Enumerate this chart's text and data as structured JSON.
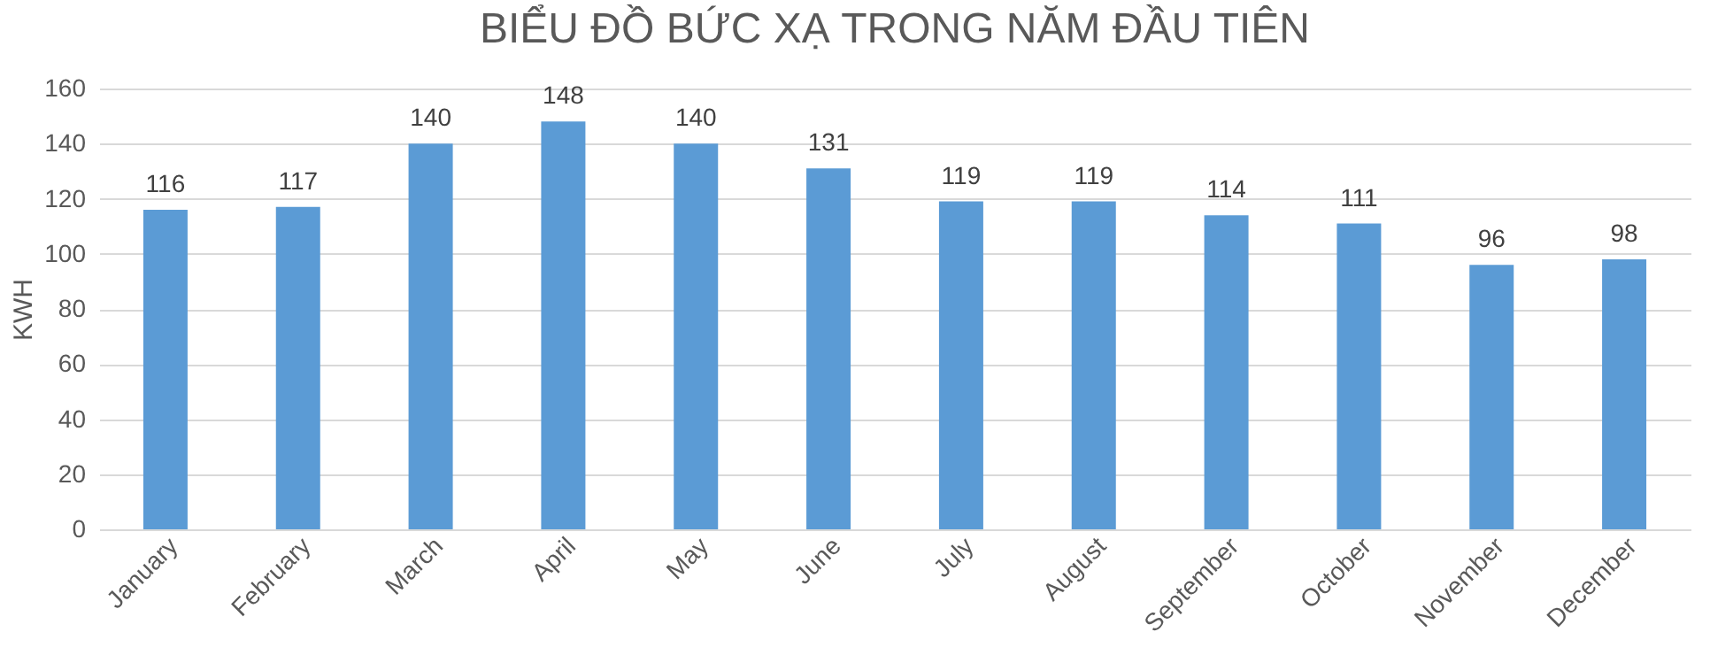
{
  "chart_data": {
    "type": "bar",
    "title": "BIỂU ĐỒ BỨC XẠ TRONG NĂM ĐẦU TIÊN",
    "ylabel": "KWH",
    "categories": [
      "January",
      "February",
      "March",
      "April",
      "May",
      "June",
      "July",
      "August",
      "September",
      "October",
      "November",
      "December"
    ],
    "values": [
      116,
      117,
      140,
      148,
      140,
      131,
      119,
      119,
      114,
      111,
      96,
      98
    ],
    "color": "#5b9bd5",
    "ylim": [
      0,
      160
    ],
    "yticks": [
      0,
      20,
      40,
      60,
      80,
      100,
      120,
      140,
      160
    ],
    "grid": "y",
    "data_labels": true
  }
}
